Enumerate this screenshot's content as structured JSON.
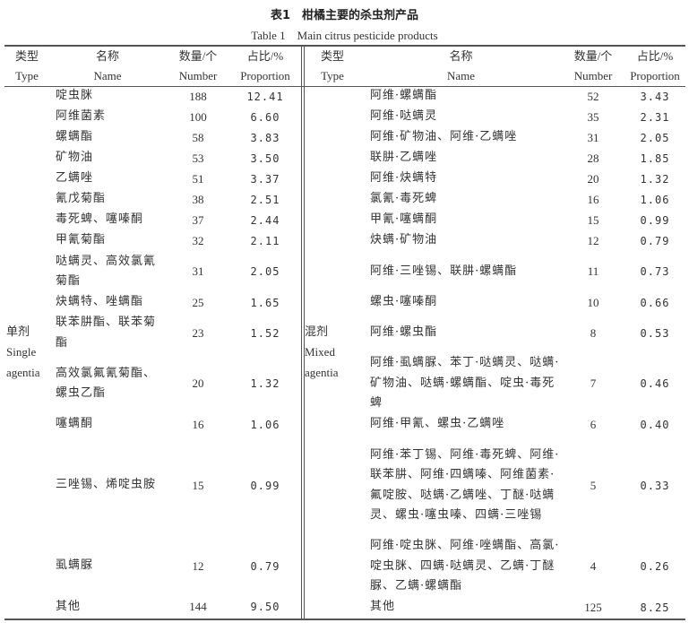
{
  "caption": {
    "zh": "表1　柑橘主要的杀虫剂产品",
    "en": "Table 1　Main citrus pesticide products"
  },
  "headers": {
    "type_zh": "类型",
    "type_en": "Type",
    "name_zh": "名称",
    "name_en": "Name",
    "number_zh": "数量/个",
    "number_en": "Number",
    "prop_zh": "占比/%",
    "prop_en": "Proportion"
  },
  "single": {
    "type_zh": "单剂",
    "type_en1": "Single",
    "type_en2": "agentia",
    "rows": [
      {
        "name": "啶虫脒",
        "number": "188",
        "prop": "12.41"
      },
      {
        "name": "阿维菌素",
        "number": "100",
        "prop": "6.60"
      },
      {
        "name": "螺螨酯",
        "number": "58",
        "prop": "3.83"
      },
      {
        "name": "矿物油",
        "number": "53",
        "prop": "3.50"
      },
      {
        "name": "乙螨唑",
        "number": "51",
        "prop": "3.37"
      },
      {
        "name": "氰戊菊酯",
        "number": "38",
        "prop": "2.51"
      },
      {
        "name": "毒死蜱、噻嗪酮",
        "number": "37",
        "prop": "2.44"
      },
      {
        "name": "甲氰菊酯",
        "number": "32",
        "prop": "2.11"
      },
      {
        "name": "哒螨灵、高效氯氰菊酯",
        "number": "31",
        "prop": "2.05"
      },
      {
        "name": "炔螨特、唑螨酯",
        "number": "25",
        "prop": "1.65"
      },
      {
        "name": "联苯肼酯、联苯菊酯",
        "number": "23",
        "prop": "1.52"
      },
      {
        "name": "高效氯氟氰菊酯、螺虫乙酯",
        "number": "20",
        "prop": "1.32"
      },
      {
        "name": "噻螨酮",
        "number": "16",
        "prop": "1.06"
      },
      {
        "name": "三唑锡、烯啶虫胺",
        "number": "15",
        "prop": "0.99"
      },
      {
        "name": "虱螨脲",
        "number": "12",
        "prop": "0.79"
      },
      {
        "name": "其他",
        "number": "144",
        "prop": "9.50"
      }
    ]
  },
  "mixed": {
    "type_zh": "混剂",
    "type_en1": "Mixed",
    "type_en2": "agentia",
    "rows": [
      {
        "name": "阿维·螺螨酯",
        "number": "52",
        "prop": "3.43"
      },
      {
        "name": "阿维·哒螨灵",
        "number": "35",
        "prop": "2.31"
      },
      {
        "name": "阿维·矿物油、阿维·乙螨唑",
        "number": "31",
        "prop": "2.05"
      },
      {
        "name": "联肼·乙螨唑",
        "number": "28",
        "prop": "1.85"
      },
      {
        "name": "阿维·炔螨特",
        "number": "20",
        "prop": "1.32"
      },
      {
        "name": "氯氰·毒死蜱",
        "number": "16",
        "prop": "1.06"
      },
      {
        "name": "甲氰·噻螨酮",
        "number": "15",
        "prop": "0.99"
      },
      {
        "name": "炔螨·矿物油",
        "number": "12",
        "prop": "0.79"
      },
      {
        "name": "阿维·三唑锡、联肼·螺螨酯",
        "number": "11",
        "prop": "0.73"
      },
      {
        "name": "螺虫·噻嗪酮",
        "number": "10",
        "prop": "0.66"
      },
      {
        "name": "阿维·螺虫酯",
        "number": "8",
        "prop": "0.53"
      },
      {
        "name": "阿维·虱螨脲、苯丁·哒螨灵、哒螨·矿物油、哒螨·螺螨酯、啶虫·毒死蜱",
        "number": "7",
        "prop": "0.46"
      },
      {
        "name": "阿维·甲氰、螺虫·乙螨唑",
        "number": "6",
        "prop": "0.40"
      },
      {
        "name": "阿维·苯丁锡、阿维·毒死蜱、阿维·联苯肼、阿维·四螨嗪、阿维菌素·氟啶胺、哒螨·乙螨唑、丁醚·哒螨灵、螺虫·噻虫嗪、四螨·三唑锡",
        "number": "5",
        "prop": "0.33"
      },
      {
        "name": "阿维·啶虫脒、阿维·唑螨酯、高氯·啶虫脒、四螨·哒螨灵、乙螨·丁醚脲、乙螨·螺螨酯",
        "number": "4",
        "prop": "0.26"
      },
      {
        "name": "其他",
        "number": "125",
        "prop": "8.25"
      }
    ]
  }
}
